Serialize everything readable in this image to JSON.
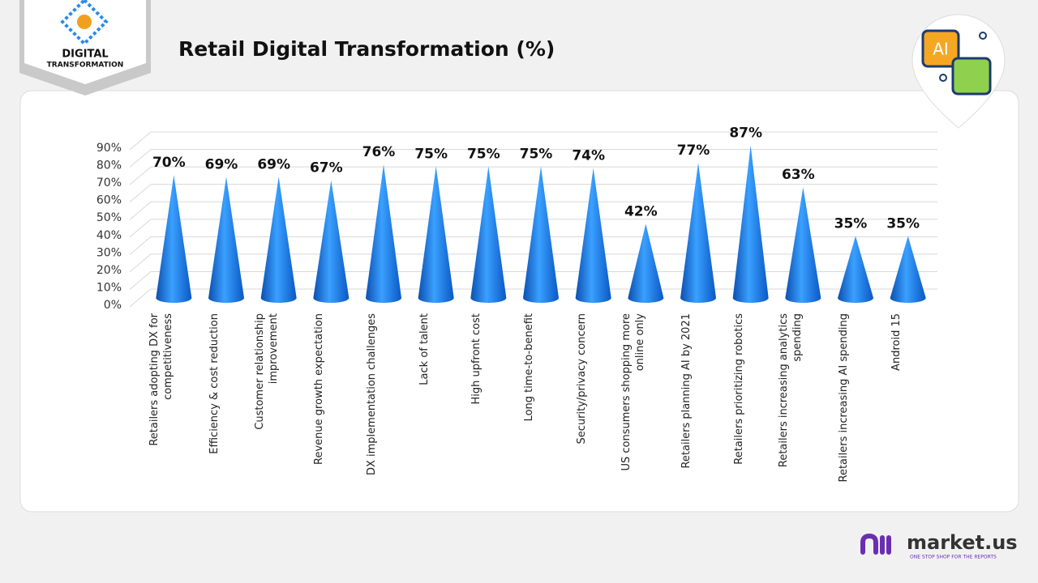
{
  "badge": {
    "line1": "DIGITAL",
    "line2": "TRANSFORMATION"
  },
  "icon": {
    "text": "AI"
  },
  "footer": {
    "brand": "market.us",
    "tagline": "ONE STOP SHOP FOR THE REPORTS"
  },
  "chart_data": {
    "type": "cone",
    "title": "Retail Digital Transformation (%)",
    "categories": [
      "Retailers adopting DX for competitiveness",
      "Efficiency & cost reduction",
      "Customer relationship improvement",
      "Revenue growth expectation",
      "DX implementation challenges",
      "Lack of talent",
      "High upfront cost",
      "Long time-to-benefit",
      "Security/privacy concern",
      "US consumers shopping more online only",
      "Retailers planning AI by 2021",
      "Retailers prioritizing robotics",
      "Retailers increasing analytics spending",
      "Retailers increasing AI spending",
      "Android 15"
    ],
    "values": [
      70,
      69,
      69,
      67,
      76,
      75,
      75,
      75,
      74,
      42,
      77,
      87,
      63,
      35,
      35
    ],
    "value_labels": [
      "70%",
      "69%",
      "69%",
      "67%",
      "76%",
      "75%",
      "75%",
      "75%",
      "74%",
      "42%",
      "77%",
      "87%",
      "63%",
      "35%",
      "35%"
    ],
    "color": "#1a7fe0",
    "ylim": [
      0,
      90
    ],
    "yticks": [
      {
        "value": 0,
        "label": "0%"
      },
      {
        "value": 10,
        "label": "10%"
      },
      {
        "value": 20,
        "label": "20%"
      },
      {
        "value": 30,
        "label": "30%"
      },
      {
        "value": 40,
        "label": "40%"
      },
      {
        "value": 50,
        "label": "50%"
      },
      {
        "value": 60,
        "label": "60%"
      },
      {
        "value": 70,
        "label": "70%"
      },
      {
        "value": 80,
        "label": "80%"
      },
      {
        "value": 90,
        "label": "90%"
      }
    ],
    "grid": true
  }
}
